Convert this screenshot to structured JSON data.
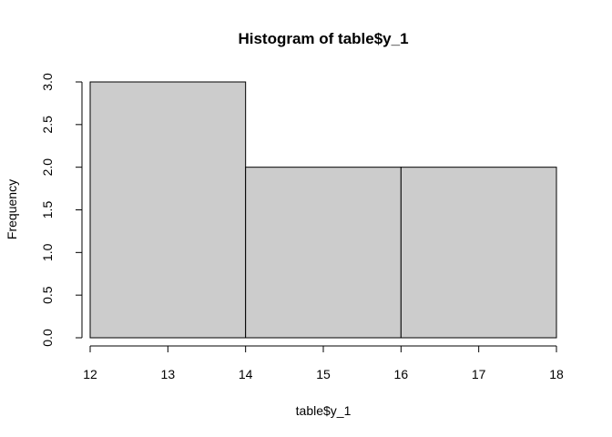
{
  "chart_data": {
    "type": "histogram",
    "title": "Histogram of table$y_1",
    "xlabel": "table$y_1",
    "ylabel": "Frequency",
    "bins": [
      {
        "from": 12,
        "to": 14,
        "count": 3
      },
      {
        "from": 14,
        "to": 16,
        "count": 2
      },
      {
        "from": 16,
        "to": 18,
        "count": 2
      }
    ],
    "x_ticks": [
      "12",
      "13",
      "14",
      "15",
      "16",
      "17",
      "18"
    ],
    "y_ticks": [
      "0.0",
      "0.5",
      "1.0",
      "1.5",
      "2.0",
      "2.5",
      "3.0"
    ],
    "xlim": [
      12,
      18
    ],
    "ylim": [
      0,
      3
    ],
    "grid": false,
    "bar_fill": "#cccccc",
    "bar_stroke": "#000000"
  }
}
